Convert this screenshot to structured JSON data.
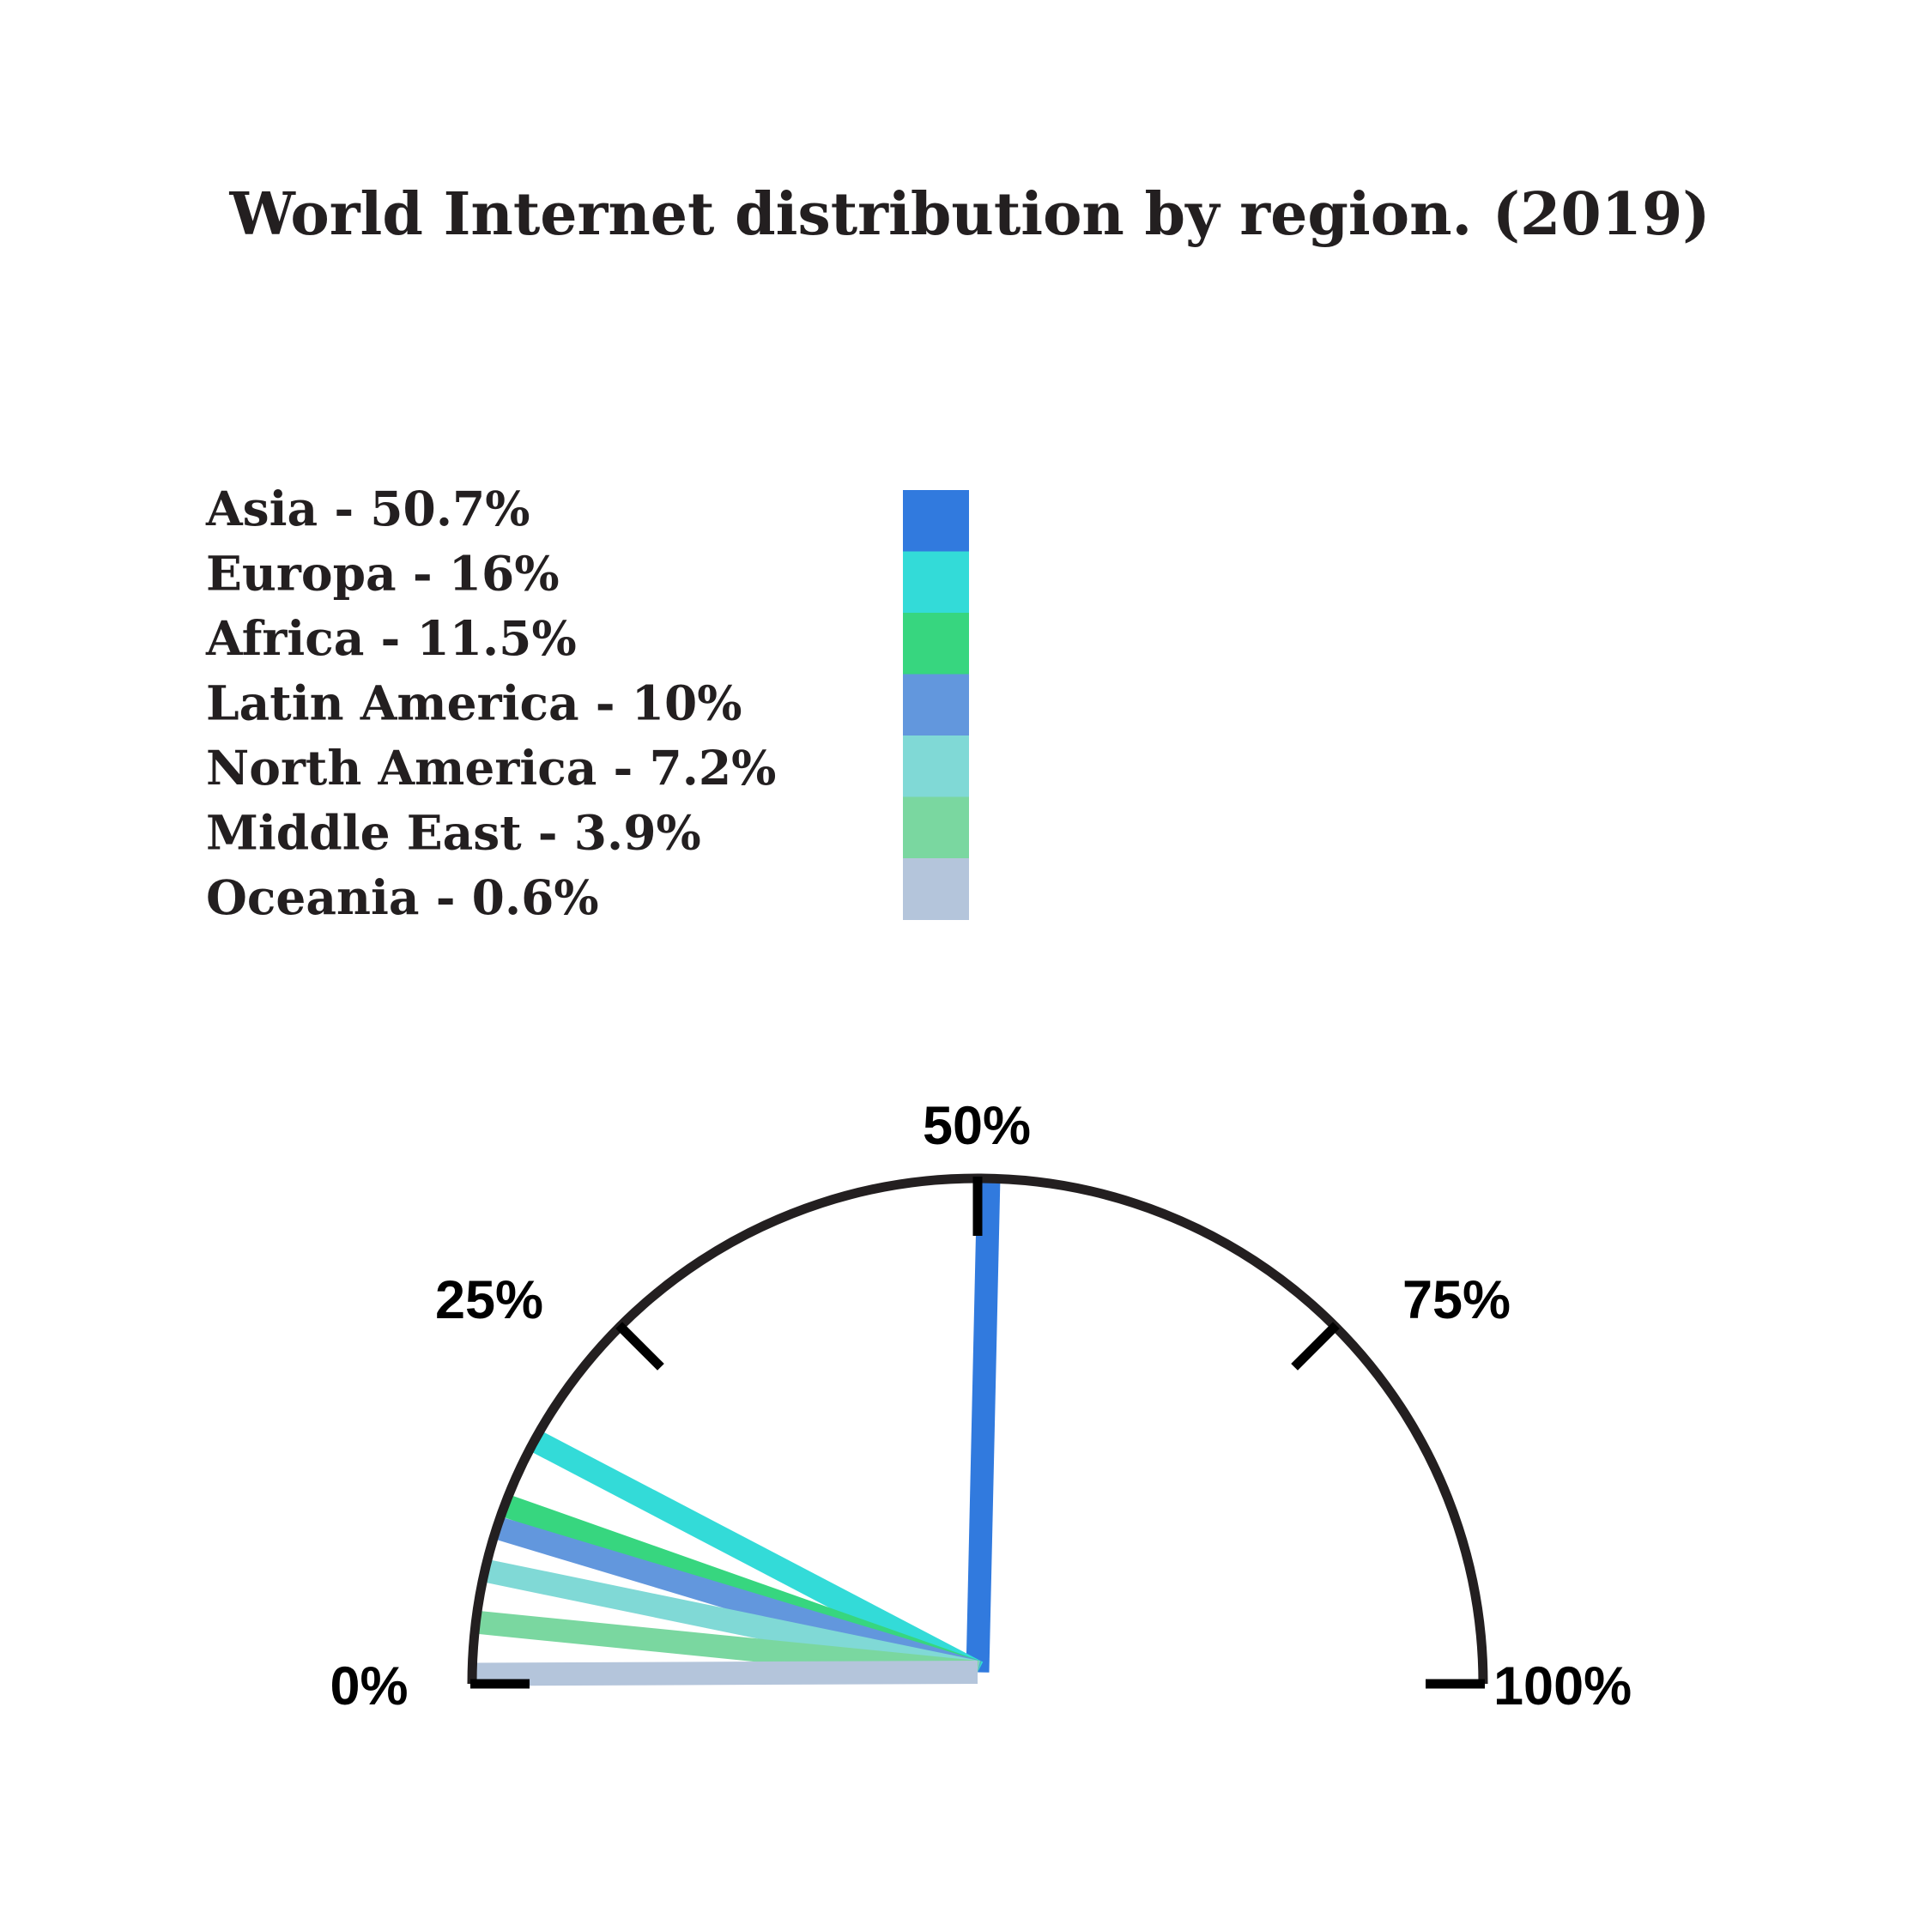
{
  "chart_data": {
    "type": "gauge",
    "title": "World Internet distribution by region. (2019)",
    "scale": {
      "min": 0,
      "max": 100,
      "unit": "%"
    },
    "ticks": [
      {
        "value": 0,
        "label": "0%"
      },
      {
        "value": 25,
        "label": "25%"
      },
      {
        "value": 50,
        "label": "50%"
      },
      {
        "value": 75,
        "label": "75%"
      },
      {
        "value": 100,
        "label": "100%"
      }
    ],
    "legend_position": "top-left",
    "series": [
      {
        "name": "Asia",
        "label": "Asia - 50.7%",
        "value": 50.7,
        "color": "#317ade"
      },
      {
        "name": "Europa",
        "label": "Europa - 16%",
        "value": 16,
        "color": "#33dbd8"
      },
      {
        "name": "Africa",
        "label": "Africa - 11.5%",
        "value": 11.5,
        "color": "#37d67f"
      },
      {
        "name": "Latin America",
        "label": "Latin America - 10%",
        "value": 10,
        "color": "#6297dd"
      },
      {
        "name": "North America",
        "label": "North America - 7.2%",
        "value": 7.2,
        "color": "#80d9d6"
      },
      {
        "name": "Middle East",
        "label": "Middle East - 3.9%",
        "value": 3.9,
        "color": "#7ad7a0"
      },
      {
        "name": "Oceania",
        "label": "Oceania - 0.6%",
        "value": 0.6,
        "color": "#b4c5db"
      }
    ],
    "arc_color": "#231f20",
    "tick_color": "#000000"
  }
}
